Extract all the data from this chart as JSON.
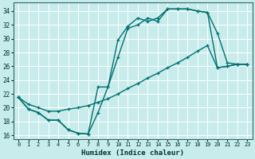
{
  "xlabel": "Humidex (Indice chaleur)",
  "bg_color": "#c8ecec",
  "grid_color": "#ffffff",
  "line_color": "#007070",
  "xlim": [
    -0.5,
    23.5
  ],
  "ylim": [
    15.5,
    35.2
  ],
  "xticks": [
    0,
    1,
    2,
    3,
    4,
    5,
    6,
    7,
    8,
    9,
    10,
    11,
    12,
    13,
    14,
    15,
    16,
    17,
    18,
    19,
    20,
    21,
    22,
    23
  ],
  "yticks": [
    16,
    18,
    20,
    22,
    24,
    26,
    28,
    30,
    32,
    34
  ],
  "line1_x": [
    0,
    1,
    2,
    3,
    4,
    5,
    6,
    7,
    8,
    9,
    10,
    11,
    12,
    13,
    14,
    15,
    16,
    17,
    18,
    19,
    20,
    21,
    22,
    23
  ],
  "line1_y": [
    21.5,
    19.8,
    19.3,
    18.2,
    18.2,
    16.8,
    16.3,
    16.2,
    19.3,
    23.0,
    29.8,
    31.8,
    33.0,
    32.5,
    33.0,
    34.3,
    34.3,
    34.3,
    34.0,
    33.8,
    30.8,
    26.5,
    26.3,
    26.3
  ],
  "line2_x": [
    0,
    1,
    2,
    3,
    4,
    5,
    6,
    7,
    8,
    9,
    10,
    11,
    12,
    13,
    14,
    15,
    16,
    17,
    18,
    19,
    20,
    21,
    22,
    23
  ],
  "line2_y": [
    21.5,
    19.8,
    19.3,
    18.2,
    18.2,
    16.8,
    16.3,
    16.2,
    23.0,
    23.0,
    27.3,
    31.5,
    32.0,
    33.0,
    32.5,
    34.3,
    34.3,
    34.3,
    34.0,
    33.8,
    25.8,
    26.0,
    26.3,
    26.3
  ],
  "line3_x": [
    0,
    1,
    2,
    3,
    4,
    5,
    6,
    7,
    8,
    9,
    10,
    11,
    12,
    13,
    14,
    15,
    16,
    17,
    18,
    19,
    20,
    21,
    22,
    23
  ],
  "line3_y": [
    21.5,
    20.5,
    20.0,
    19.5,
    19.5,
    19.8,
    20.0,
    20.3,
    20.8,
    21.3,
    22.0,
    22.8,
    23.5,
    24.3,
    25.0,
    25.8,
    26.5,
    27.3,
    28.2,
    29.0,
    25.8,
    26.0,
    26.3,
    26.3
  ],
  "markersize": 3.5,
  "linewidth": 1.0
}
